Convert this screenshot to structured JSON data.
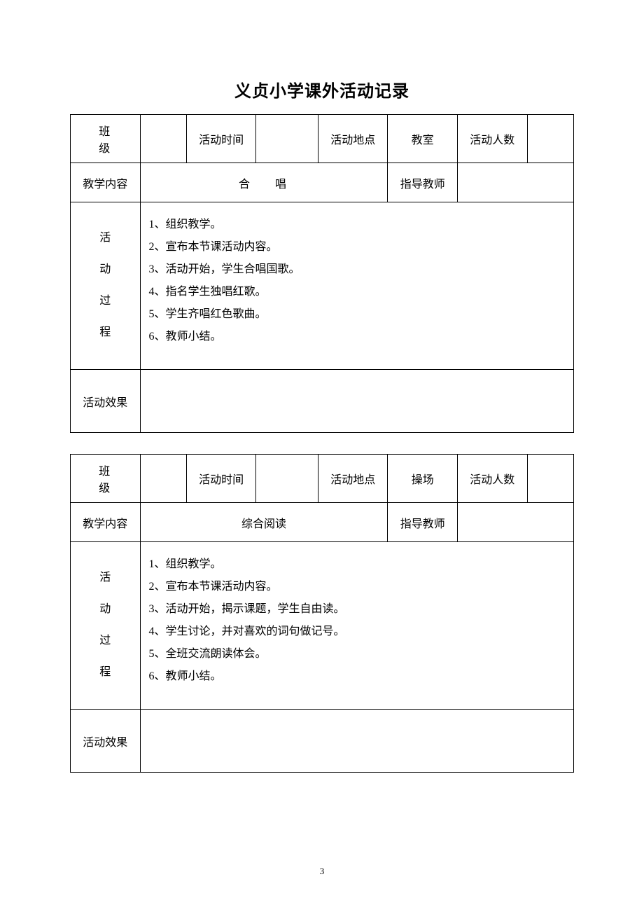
{
  "page": {
    "title": "义贞小学课外活动记录",
    "page_number": "3"
  },
  "labels": {
    "class": "班　级",
    "activity_time": "活动时间",
    "activity_place": "活动地点",
    "activity_people": "活动人数",
    "teaching_content": "教学内容",
    "guide_teacher": "指导教师",
    "activity_effect": "活动效果",
    "process_chars": [
      "活",
      "动",
      "过",
      "程"
    ]
  },
  "table1": {
    "place_value": "教室",
    "content_value": "合　唱",
    "process_lines": [
      "1、组织教学。",
      "2、宣布本节课活动内容。",
      "3、活动开始，学生合唱国歌。",
      "4、指名学生独唱红歌。",
      "5、学生齐唱红色歌曲。",
      "6、教师小结。"
    ]
  },
  "table2": {
    "place_value": "操场",
    "content_value": "综合阅读",
    "process_lines": [
      "1、组织教学。",
      "2、宣布本节课活动内容。",
      "3、活动开始，揭示课题，学生自由读。",
      "4、学生讨论，并对喜欢的词句做记号。",
      "5、全班交流朗读体会。",
      "6、教师小结。"
    ]
  }
}
